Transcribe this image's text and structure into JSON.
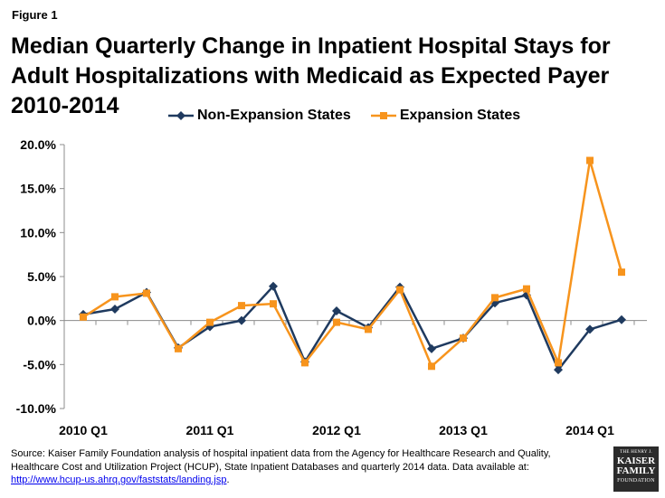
{
  "figure_label": "Figure 1",
  "source_text": "Source:  Kaiser Family Foundation analysis of hospital inpatient data from the Agency for Healthcare Research and Quality, Healthcare Cost and Utilization Project (HCUP), State Inpatient Databases and quarterly 2014 data. Data available at:",
  "source_link": "http://www.hcup-us.ahrq.gov/faststats/landing.jsp",
  "source_end": ".",
  "logo": {
    "line1": "THE HENRY J.",
    "line2": "KAISER",
    "line3": "FAMILY",
    "line4": "FOUNDATION"
  },
  "colors": {
    "non_expansion": "#1f3a5f",
    "expansion": "#f7941d"
  },
  "chart_data": {
    "type": "line",
    "title": "Median Quarterly Change in Inpatient Hospital Stays for Adult Hospitalizations with Medicaid as Expected Payer 2010-2014",
    "xlabel": "",
    "ylabel": "",
    "ylim": [
      -10,
      20
    ],
    "yticks": [
      20,
      15,
      10,
      5,
      0,
      -5,
      -10
    ],
    "ytick_labels": [
      "20.0%",
      "15.0%",
      "10.0%",
      "5.0%",
      "0.0%",
      "-5.0%",
      "-10.0%"
    ],
    "x_tick_labels": [
      "2010 Q1",
      "2011 Q1",
      "2012 Q1",
      "2013 Q1",
      "2014 Q1"
    ],
    "x_tick_positions": [
      0,
      4,
      8,
      12,
      16
    ],
    "num_points": 19,
    "grid": false,
    "legend_position": "top",
    "series": [
      {
        "name": "Non-Expansion States",
        "marker": "diamond",
        "values": [
          0.7,
          1.3,
          3.2,
          -3.1,
          -0.7,
          0.0,
          3.9,
          -4.7,
          1.1,
          -0.8,
          3.8,
          -3.2,
          -2.0,
          2.0,
          2.9,
          -5.6,
          -1.0,
          0.1,
          null
        ]
      },
      {
        "name": "Expansion States",
        "marker": "square",
        "values": [
          0.4,
          2.7,
          3.1,
          -3.2,
          -0.2,
          1.7,
          1.9,
          -4.8,
          -0.2,
          -1.0,
          3.5,
          -5.2,
          -2.0,
          2.6,
          3.6,
          -4.8,
          18.2,
          5.5,
          null
        ]
      }
    ]
  }
}
